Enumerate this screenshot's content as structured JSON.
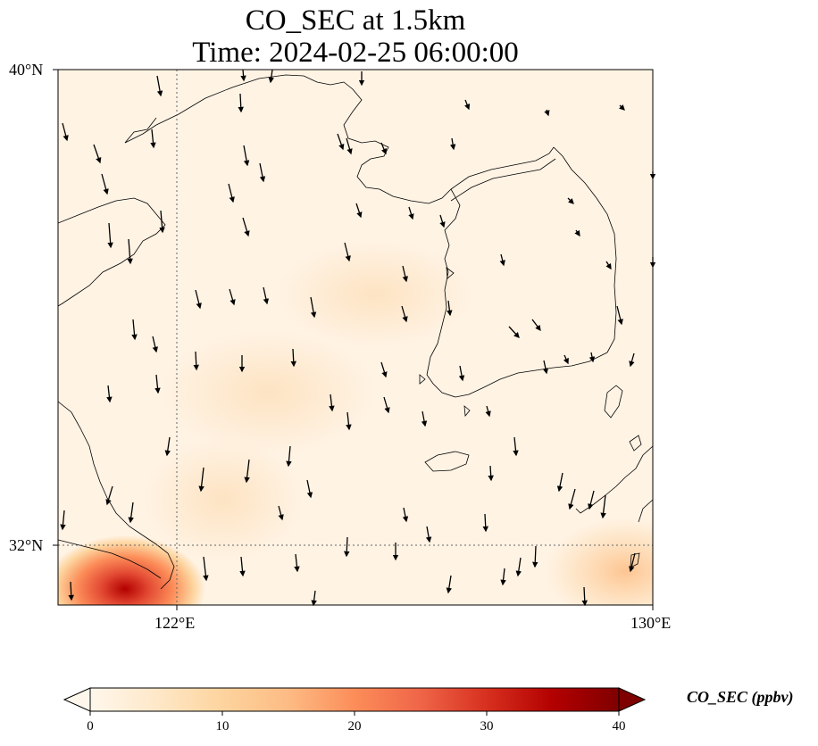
{
  "title": {
    "line1": "CO_SEC at 1.5km",
    "line2": "Time: 2024-02-25 06:00:00"
  },
  "axes": {
    "lat_labels": [
      "40°N",
      "32°N"
    ],
    "lon_labels": [
      "122°E",
      "130°E"
    ],
    "lon_range": [
      120,
      130
    ],
    "lat_range": [
      31,
      40
    ],
    "gridlines": "dotted at 122°E and 32°N"
  },
  "colorbar": {
    "label": "CO_SEC (ppbv)",
    "ticks": [
      "0",
      "10",
      "20",
      "30",
      "40"
    ],
    "range": [
      0,
      40
    ],
    "colormap": "OrRd",
    "extend": "both",
    "colors": [
      "#fff7ec",
      "#fee8c8",
      "#fdd49e",
      "#fdbb84",
      "#fc8d59",
      "#ef6548",
      "#d7301f",
      "#b30000",
      "#7f0000"
    ]
  },
  "field_description_values": {
    "background_ppbv": 3,
    "southwest_maximum_ppbv": 32,
    "southeast_corner_ppbv": 12
  },
  "wind_arrows_note": "black arrows, predominantly northerly flow (pointing south)"
}
